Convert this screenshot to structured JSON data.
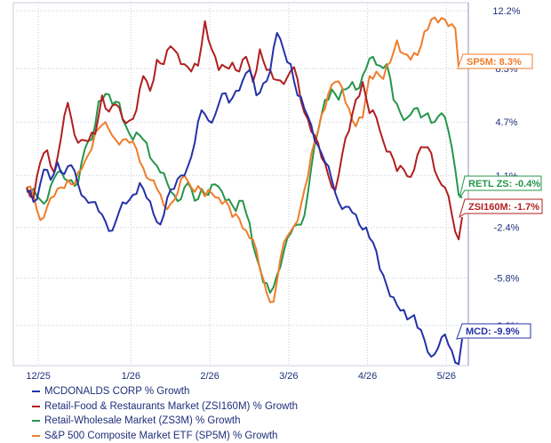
{
  "chart_data": {
    "type": "line",
    "x_tick_labels": [
      "12/25",
      "1/26",
      "2/26",
      "3/26",
      "4/26",
      "5/26"
    ],
    "y_tick_labels": [
      "12.2%",
      "8.3%",
      "4.7%",
      "1.1%",
      "-2.4%",
      "-5.8%",
      "-9.0%"
    ],
    "y_ticks": [
      12.2,
      8.3,
      4.7,
      1.1,
      -2.4,
      -5.8,
      -9.0
    ],
    "ylim": [
      -11.7,
      12.2
    ],
    "n_points": 128,
    "gridlines": "vertical and horizontal dotted",
    "legend_position": "bottom-left",
    "series": [
      {
        "name": "MCDONALDS CORP % Growth",
        "color": "#2432a8",
        "end_label": "MCD: -9.9%",
        "points": [
          [
            0,
            0
          ],
          [
            3,
            -0.5
          ],
          [
            5,
            1.5
          ],
          [
            7,
            0.8
          ],
          [
            9,
            2.0
          ],
          [
            11,
            1.2
          ],
          [
            13,
            1.8
          ],
          [
            15,
            0.5
          ],
          [
            17,
            -0.4
          ],
          [
            19,
            -0.7
          ],
          [
            21,
            -1.3
          ],
          [
            23,
            -2.0
          ],
          [
            25,
            -2.6
          ],
          [
            27,
            -1.3
          ],
          [
            29,
            -0.8
          ],
          [
            31,
            -0.2
          ],
          [
            33,
            0.6
          ],
          [
            35,
            -0.4
          ],
          [
            37,
            -1.5
          ],
          [
            39,
            -2.2
          ],
          [
            41,
            -0.4
          ],
          [
            43,
            0.2
          ],
          [
            45,
            1.1
          ],
          [
            47,
            1.7
          ],
          [
            49,
            3.3
          ],
          [
            51,
            5.5
          ],
          [
            53,
            4.8
          ],
          [
            55,
            5.2
          ],
          [
            57,
            6.6
          ],
          [
            59,
            6.0
          ],
          [
            61,
            6.8
          ],
          [
            63,
            7.5
          ],
          [
            65,
            8.2
          ],
          [
            67,
            6.5
          ],
          [
            69,
            7.3
          ],
          [
            71,
            8.1
          ],
          [
            73,
            10.7
          ],
          [
            75,
            9.5
          ],
          [
            77,
            8.6
          ],
          [
            79,
            6.5
          ],
          [
            81,
            5.6
          ],
          [
            83,
            4.5
          ],
          [
            85,
            3.1
          ],
          [
            87,
            2.0
          ],
          [
            89,
            0.8
          ],
          [
            91,
            -0.7
          ],
          [
            93,
            -1.0
          ],
          [
            95,
            -1.4
          ],
          [
            97,
            -2.2
          ],
          [
            99,
            -2.4
          ],
          [
            101,
            -3.4
          ],
          [
            103,
            -5.2
          ],
          [
            105,
            -6.3
          ],
          [
            107,
            -7.1
          ],
          [
            109,
            -8.0
          ],
          [
            111,
            -8.6
          ],
          [
            113,
            -8.3
          ],
          [
            115,
            -9.3
          ],
          [
            117,
            -10.8
          ],
          [
            118,
            -11.1
          ],
          [
            120,
            -10.5
          ],
          [
            121,
            -9.8
          ],
          [
            122,
            -9.6
          ],
          [
            123,
            -10.3
          ],
          [
            124,
            -10.7
          ],
          [
            125,
            -11.5
          ],
          [
            126,
            -11.6
          ],
          [
            127,
            -9.9
          ]
        ]
      },
      {
        "name": "Retail-Food & Restaurants Market (ZSI160M) % Growth",
        "color": "#b11f21",
        "end_label": "ZSI160M: -1.7%",
        "points": [
          [
            0,
            0.3
          ],
          [
            2,
            -0.4
          ],
          [
            4,
            2.0
          ],
          [
            6,
            2.8
          ],
          [
            8,
            1.3
          ],
          [
            10,
            3.6
          ],
          [
            12,
            6.0
          ],
          [
            14,
            3.8
          ],
          [
            16,
            3.5
          ],
          [
            18,
            3.4
          ],
          [
            20,
            3.9
          ],
          [
            22,
            6.5
          ],
          [
            24,
            5.4
          ],
          [
            26,
            5.9
          ],
          [
            28,
            4.9
          ],
          [
            30,
            4.8
          ],
          [
            32,
            5.5
          ],
          [
            34,
            7.8
          ],
          [
            36,
            6.8
          ],
          [
            38,
            8.9
          ],
          [
            40,
            8.6
          ],
          [
            42,
            9.8
          ],
          [
            44,
            9.3
          ],
          [
            46,
            8.6
          ],
          [
            48,
            8.1
          ],
          [
            50,
            8.5
          ],
          [
            52,
            11.5
          ],
          [
            54,
            9.6
          ],
          [
            56,
            8.2
          ],
          [
            58,
            8.4
          ],
          [
            60,
            8.7
          ],
          [
            62,
            8.1
          ],
          [
            64,
            9.1
          ],
          [
            66,
            7.4
          ],
          [
            68,
            9.6
          ],
          [
            70,
            8.2
          ],
          [
            72,
            7.6
          ],
          [
            74,
            7.5
          ],
          [
            76,
            7.7
          ],
          [
            78,
            8.4
          ],
          [
            80,
            6.1
          ],
          [
            82,
            4.9
          ],
          [
            84,
            3.8
          ],
          [
            86,
            2.3
          ],
          [
            88,
            1.1
          ],
          [
            90,
            0.1
          ],
          [
            92,
            2.5
          ],
          [
            94,
            4.1
          ],
          [
            96,
            6.2
          ],
          [
            98,
            7.4
          ],
          [
            100,
            5.3
          ],
          [
            102,
            5.0
          ],
          [
            104,
            3.4
          ],
          [
            106,
            2.7
          ],
          [
            108,
            1.4
          ],
          [
            110,
            1.5
          ],
          [
            112,
            1.0
          ],
          [
            114,
            2.5
          ],
          [
            116,
            3.0
          ],
          [
            118,
            2.6
          ],
          [
            120,
            0.9
          ],
          [
            122,
            0.3
          ],
          [
            124,
            -1.5
          ],
          [
            125,
            -2.7
          ],
          [
            126,
            -3.2
          ],
          [
            127,
            -1.7
          ]
        ]
      },
      {
        "name": "Retail-Wholesale Market (ZS3M) % Growth",
        "color": "#24964a",
        "end_label": "RETL ZS: -0.4%",
        "points": [
          [
            0,
            0.2
          ],
          [
            3,
            -0.3
          ],
          [
            5,
            -0.8
          ],
          [
            7,
            0.4
          ],
          [
            9,
            1.3
          ],
          [
            11,
            0.9
          ],
          [
            13,
            0.8
          ],
          [
            15,
            0.6
          ],
          [
            17,
            2.9
          ],
          [
            19,
            3.5
          ],
          [
            21,
            6.1
          ],
          [
            23,
            6.6
          ],
          [
            25,
            5.9
          ],
          [
            27,
            6.0
          ],
          [
            29,
            4.4
          ],
          [
            31,
            3.5
          ],
          [
            33,
            3.8
          ],
          [
            35,
            3.3
          ],
          [
            37,
            2.0
          ],
          [
            39,
            1.3
          ],
          [
            41,
            0.6
          ],
          [
            43,
            -0.2
          ],
          [
            45,
            -0.5
          ],
          [
            47,
            0.6
          ],
          [
            49,
            -0.6
          ],
          [
            51,
            0.2
          ],
          [
            53,
            -0.2
          ],
          [
            55,
            0.5
          ],
          [
            57,
            0.0
          ],
          [
            59,
            -0.5
          ],
          [
            61,
            -1.3
          ],
          [
            63,
            -0.6
          ],
          [
            65,
            -2.1
          ],
          [
            67,
            -4.4
          ],
          [
            69,
            -6.1
          ],
          [
            71,
            -6.8
          ],
          [
            73,
            -5.6
          ],
          [
            75,
            -4.0
          ],
          [
            77,
            -2.8
          ],
          [
            79,
            -2.2
          ],
          [
            81,
            -1.6
          ],
          [
            83,
            1.6
          ],
          [
            85,
            4.1
          ],
          [
            87,
            6.2
          ],
          [
            89,
            6.9
          ],
          [
            91,
            6.2
          ],
          [
            93,
            6.9
          ],
          [
            95,
            7.4
          ],
          [
            97,
            7.0
          ],
          [
            99,
            8.3
          ],
          [
            101,
            9.1
          ],
          [
            103,
            8.5
          ],
          [
            105,
            8.6
          ],
          [
            107,
            6.2
          ],
          [
            109,
            5.3
          ],
          [
            111,
            5.0
          ],
          [
            113,
            5.6
          ],
          [
            115,
            5.0
          ],
          [
            117,
            5.3
          ],
          [
            119,
            4.7
          ],
          [
            121,
            5.3
          ],
          [
            123,
            4.1
          ],
          [
            124,
            3.0
          ],
          [
            125,
            1.5
          ],
          [
            126,
            -0.2
          ],
          [
            127,
            -0.4
          ]
        ]
      },
      {
        "name": "S&P 500 Composite Market ETF (SP5M) % Growth",
        "color": "#f07c2a",
        "end_label": "SP5M: 8.3%",
        "points": [
          [
            0,
            0.3
          ],
          [
            2,
            -0.2
          ],
          [
            4,
            -1.9
          ],
          [
            6,
            -1.0
          ],
          [
            8,
            -0.3
          ],
          [
            10,
            0.3
          ],
          [
            12,
            0.8
          ],
          [
            14,
            0.5
          ],
          [
            16,
            1.5
          ],
          [
            18,
            2.5
          ],
          [
            20,
            4.0
          ],
          [
            22,
            4.5
          ],
          [
            24,
            4.2
          ],
          [
            26,
            3.5
          ],
          [
            28,
            3.5
          ],
          [
            30,
            3.3
          ],
          [
            32,
            2.9
          ],
          [
            34,
            1.6
          ],
          [
            36,
            0.8
          ],
          [
            38,
            0.2
          ],
          [
            40,
            -0.9
          ],
          [
            42,
            -0.8
          ],
          [
            44,
            -0.1
          ],
          [
            46,
            1.1
          ],
          [
            48,
            0.3
          ],
          [
            50,
            0.4
          ],
          [
            52,
            -0.3
          ],
          [
            54,
            -0.1
          ],
          [
            56,
            -0.4
          ],
          [
            58,
            -0.6
          ],
          [
            60,
            -1.7
          ],
          [
            62,
            -1.8
          ],
          [
            64,
            -2.6
          ],
          [
            66,
            -3.2
          ],
          [
            68,
            -5.2
          ],
          [
            70,
            -6.8
          ],
          [
            72,
            -7.4
          ],
          [
            74,
            -4.5
          ],
          [
            76,
            -3.0
          ],
          [
            78,
            -2.3
          ],
          [
            80,
            -0.9
          ],
          [
            82,
            1.0
          ],
          [
            84,
            3.4
          ],
          [
            86,
            5.2
          ],
          [
            88,
            6.6
          ],
          [
            90,
            7.4
          ],
          [
            92,
            7.0
          ],
          [
            94,
            5.6
          ],
          [
            96,
            4.4
          ],
          [
            98,
            5.0
          ],
          [
            100,
            7.8
          ],
          [
            102,
            8.1
          ],
          [
            104,
            7.6
          ],
          [
            106,
            8.7
          ],
          [
            108,
            10.2
          ],
          [
            110,
            9.3
          ],
          [
            112,
            8.9
          ],
          [
            114,
            9.2
          ],
          [
            116,
            10.8
          ],
          [
            118,
            11.6
          ],
          [
            120,
            11.4
          ],
          [
            122,
            11.6
          ],
          [
            124,
            11.3
          ],
          [
            125,
            11.0
          ],
          [
            126,
            8.4
          ],
          [
            127,
            8.3
          ]
        ]
      }
    ]
  }
}
